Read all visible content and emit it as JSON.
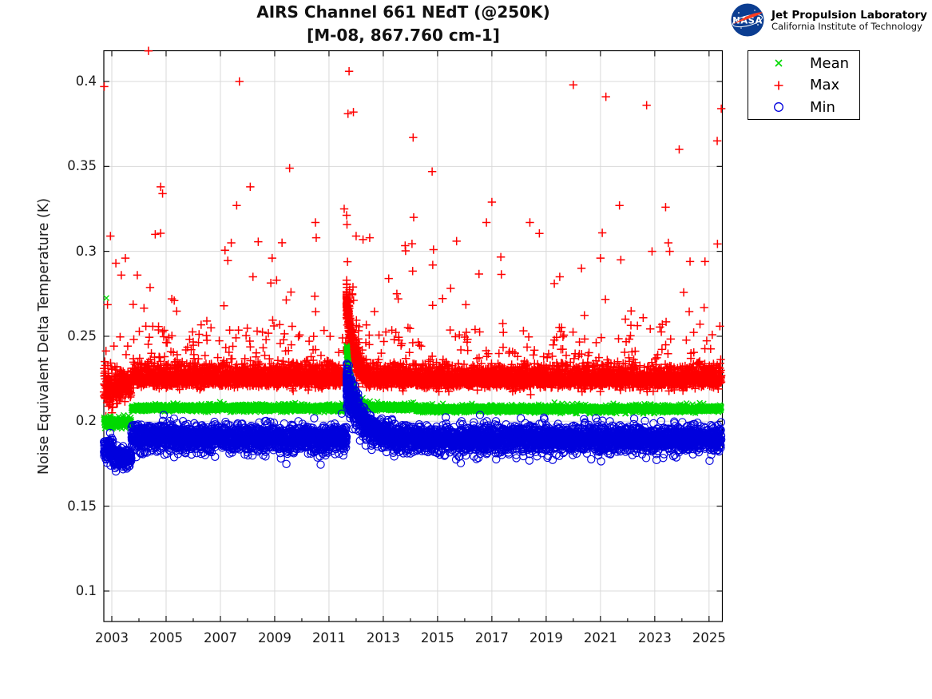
{
  "header": {
    "title": "AIRS Channel 661 NEdT (@250K)",
    "subtitle": "[M-08, 867.760 cm-1]"
  },
  "logo": {
    "badge_text": "NASA",
    "org": "Jet Propulsion Laboratory",
    "institute": "California Institute of Technology",
    "badge_blue": "#0B3D91",
    "badge_red": "#FC3D21"
  },
  "legend": {
    "items": [
      {
        "label": "Mean",
        "series": "mean"
      },
      {
        "label": "Max",
        "series": "max"
      },
      {
        "label": "Min",
        "series": "min"
      }
    ]
  },
  "chart_data": {
    "type": "scatter",
    "title": "AIRS Channel 661 NEdT (@250K)",
    "subtitle": "[M-08, 867.760 cm-1]",
    "xlabel": "",
    "ylabel": "Noise Equivalent Delta Temperature (K)",
    "xlim": [
      2002.706,
      2025.49
    ],
    "ylim": [
      0.0821,
      0.4181
    ],
    "xticks": [
      2003,
      2005,
      2007,
      2009,
      2011,
      2013,
      2015,
      2017,
      2019,
      2021,
      2023,
      2025
    ],
    "xticks_minor": [
      2004,
      2006,
      2008,
      2010,
      2012,
      2014,
      2016,
      2018,
      2020,
      2022,
      2024
    ],
    "yticks": [
      0.1,
      0.15,
      0.2,
      0.25,
      0.3,
      0.35,
      0.4
    ],
    "ytick_labels": [
      "0.1",
      "0.15",
      "0.2",
      "0.25",
      "0.3",
      "0.35",
      "0.4"
    ],
    "grid": true,
    "grid_color": "#d9d9d9",
    "axis_color": "#000000",
    "legend_position": "outside-top-right",
    "sample_start": 2002.71,
    "sample_end": 2025.45,
    "sample_step_years": 0.004,
    "draw_order": [
      "max",
      "mean",
      "min"
    ],
    "series": [
      {
        "name": "max",
        "label": "Max",
        "marker": "plus",
        "color": "#ff0000",
        "segments": [
          {
            "from": 2002.71,
            "to": 2003.05,
            "level": 0.217,
            "sd": 0.0055
          },
          {
            "from": 2003.05,
            "to": 2003.72,
            "level": 0.2195,
            "sd": 0.0042
          },
          {
            "from": 2003.72,
            "to": 2011.65,
            "level": 0.2245,
            "sd": 0.0021
          },
          {
            "from": 2011.65,
            "to": 2025.45,
            "level": 0.224,
            "sd": 0.0021
          }
        ],
        "event": {
          "t0": 2011.65,
          "amp": 0.047,
          "tau": 0.22,
          "widen": 2.2,
          "extra": 220,
          "span": 0.9
        },
        "tails_up": [
          {
            "p": 0.3,
            "lo": 0.0015,
            "hi": 0.008
          },
          {
            "p": 0.07,
            "lo": 0.008,
            "hi": 0.032
          },
          {
            "p": 0.013,
            "lo": 0.032,
            "hi": 0.088
          }
        ],
        "tails_down": [],
        "outliers": [
          [
            2002.72,
            0.397
          ],
          [
            2002.95,
            0.309
          ],
          [
            2003.35,
            0.286
          ],
          [
            2003.5,
            0.296
          ],
          [
            2003.94,
            0.286
          ],
          [
            2004.35,
            0.418
          ],
          [
            2004.6,
            0.31
          ],
          [
            2004.8,
            0.338
          ],
          [
            2004.87,
            0.334
          ],
          [
            2005.3,
            0.271
          ],
          [
            2006.5,
            0.259
          ],
          [
            2007.4,
            0.305
          ],
          [
            2007.6,
            0.327
          ],
          [
            2007.7,
            0.4
          ],
          [
            2008.1,
            0.338
          ],
          [
            2008.2,
            0.285
          ],
          [
            2009.55,
            0.349
          ],
          [
            2009.6,
            0.276
          ],
          [
            2010.5,
            0.317
          ],
          [
            2010.53,
            0.308
          ],
          [
            2011.56,
            0.325
          ],
          [
            2011.7,
            0.381
          ],
          [
            2011.74,
            0.406
          ],
          [
            2011.9,
            0.382
          ],
          [
            2012.0,
            0.309
          ],
          [
            2012.5,
            0.308
          ],
          [
            2013.2,
            0.284
          ],
          [
            2013.5,
            0.275
          ],
          [
            2013.55,
            0.272
          ],
          [
            2014.1,
            0.367
          ],
          [
            2014.12,
            0.32
          ],
          [
            2014.8,
            0.347
          ],
          [
            2014.85,
            0.301
          ],
          [
            2015.7,
            0.306
          ],
          [
            2016.8,
            0.317
          ],
          [
            2017.0,
            0.329
          ],
          [
            2018.4,
            0.317
          ],
          [
            2019.3,
            0.281
          ],
          [
            2019.5,
            0.285
          ],
          [
            2020.0,
            0.398
          ],
          [
            2020.3,
            0.29
          ],
          [
            2021.0,
            0.296
          ],
          [
            2021.2,
            0.391
          ],
          [
            2021.7,
            0.327
          ],
          [
            2021.75,
            0.295
          ],
          [
            2022.7,
            0.386
          ],
          [
            2022.9,
            0.3
          ],
          [
            2023.4,
            0.326
          ],
          [
            2023.5,
            0.305
          ],
          [
            2023.55,
            0.3
          ],
          [
            2023.9,
            0.36
          ],
          [
            2024.3,
            0.294
          ],
          [
            2024.85,
            0.294
          ],
          [
            2025.3,
            0.365
          ],
          [
            2025.45,
            0.384
          ]
        ]
      },
      {
        "name": "mean",
        "label": "Mean",
        "marker": "x",
        "color": "#00d900",
        "segments": [
          {
            "from": 2002.71,
            "to": 2003.72,
            "level": 0.1993,
            "sd": 0.0014
          },
          {
            "from": 2003.72,
            "to": 2011.65,
            "level": 0.2078,
            "sd": 0.0009
          },
          {
            "from": 2011.65,
            "to": 2014.18,
            "level": 0.2083,
            "sd": 0.0009
          },
          {
            "from": 2014.18,
            "to": 2025.45,
            "level": 0.2072,
            "sd": 0.0009
          }
        ],
        "event": {
          "t0": 2011.65,
          "amp": 0.0345,
          "tau": 0.2,
          "widen": 1.8,
          "extra": 160,
          "span": 0.95
        },
        "tails_up": [
          {
            "p": 0.01,
            "lo": 0.001,
            "hi": 0.003
          }
        ],
        "tails_down": [],
        "outliers": [
          [
            2002.8,
            0.2725
          ]
        ]
      },
      {
        "name": "min",
        "label": "Min",
        "marker": "circle",
        "color": "#0000dd",
        "segments": [
          {
            "from": 2002.71,
            "to": 2003.05,
            "level": 0.1838,
            "sd": 0.0032
          },
          {
            "from": 2003.05,
            "to": 2003.72,
            "level": 0.1788,
            "sd": 0.0028
          },
          {
            "from": 2003.72,
            "to": 2011.65,
            "level": 0.1903,
            "sd": 0.0037
          },
          {
            "from": 2011.65,
            "to": 2025.45,
            "level": 0.1898,
            "sd": 0.0037
          }
        ],
        "event": {
          "t0": 2011.65,
          "amp": 0.0325,
          "tau": 0.55,
          "widen": 1.5,
          "extra": 200,
          "span": 2.0
        },
        "tails_up": [],
        "tails_down": [
          {
            "p": 0.06,
            "lo": 0.002,
            "hi": 0.009
          }
        ],
        "outliers": []
      }
    ]
  }
}
